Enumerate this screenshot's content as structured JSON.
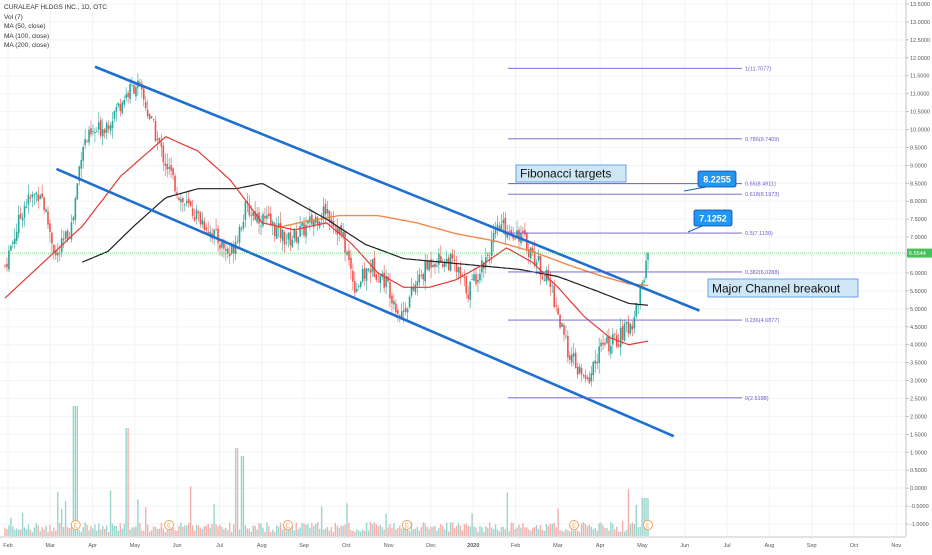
{
  "legend": {
    "symbol": "CURALEAF HLDGS INC., 1D, OTC",
    "vol": "Vol (7)",
    "ma50": "MA (50, close)",
    "ma100": "MA (100, close)",
    "ma200": "MA (200, close)"
  },
  "colors": {
    "up": "#26a69a",
    "down": "#ef5350",
    "ma50": "#e53935",
    "ma100": "#f08a4b",
    "ma200": "#1f1f1f",
    "channel": "#1e6fd0",
    "fib": "#6a5acd",
    "last_price": "#43c35a",
    "callout": "#2196f3"
  },
  "chart_data": {
    "type": "candlestick",
    "title": "CURALEAF HLDGS INC., 1D, OTC",
    "x_ticks": [
      "Feb",
      "Mar",
      "Apr",
      "May",
      "Jun",
      "Jul",
      "Aug",
      "Sep",
      "Oct",
      "Nov",
      "Dec",
      "2020",
      "Feb",
      "Mar",
      "Apr",
      "May",
      "Jun",
      "Jul",
      "Aug",
      "Sep",
      "Oct",
      "Nov"
    ],
    "price_axis": {
      "ticks": [
        "13.5000",
        "13.0000",
        "12.5000",
        "12.0000",
        "11.5000",
        "11.0000",
        "10.5000",
        "10.0000",
        "9.5000",
        "9.0000",
        "8.5000",
        "8.0000",
        "7.5000",
        "7.0000",
        "6.5000",
        "6.0000",
        "5.5000",
        "5.0000",
        "4.5000",
        "4.0000",
        "3.5000",
        "3.0000",
        "2.5000",
        "2.0000",
        "1.5000",
        "1.0000",
        "0.5000",
        "0.0000",
        "-0.5000",
        "-1.0000"
      ],
      "ylim": [
        -1.0,
        13.5
      ]
    },
    "last_price": "6.5544",
    "fib_levels": [
      {
        "label": "1(11.7077)",
        "value": 11.7077
      },
      {
        "label": "0.786(9.7409)",
        "value": 9.7409
      },
      {
        "label": "0.65(8.4911)",
        "value": 8.4911
      },
      {
        "label": "0.618(8.1973)",
        "value": 8.1973
      },
      {
        "label": "0.5(7.1130)",
        "value": 7.113
      },
      {
        "label": "0.382(6.0288)",
        "value": 6.0288
      },
      {
        "label": "0.236(4.6877)",
        "value": 4.6877
      },
      {
        "label": "0(2.5188)",
        "value": 2.5188
      }
    ],
    "annotations": {
      "fib_title": "Fibonacci  targets",
      "breakout": "Major Channel breakout",
      "target1": "8.2255",
      "target2": "7.1252"
    },
    "price_path": [
      {
        "x": 0.0,
        "p": 6.2
      },
      {
        "x": 0.03,
        "p": 7.9
      },
      {
        "x": 0.055,
        "p": 8.3
      },
      {
        "x": 0.08,
        "p": 6.4
      },
      {
        "x": 0.105,
        "p": 7.4
      },
      {
        "x": 0.12,
        "p": 9.6
      },
      {
        "x": 0.16,
        "p": 10.2
      },
      {
        "x": 0.185,
        "p": 10.9
      },
      {
        "x": 0.205,
        "p": 11.3
      },
      {
        "x": 0.22,
        "p": 10.6
      },
      {
        "x": 0.245,
        "p": 9.3
      },
      {
        "x": 0.275,
        "p": 8.0
      },
      {
        "x": 0.31,
        "p": 7.4
      },
      {
        "x": 0.35,
        "p": 6.5
      },
      {
        "x": 0.375,
        "p": 7.8
      },
      {
        "x": 0.41,
        "p": 7.4
      },
      {
        "x": 0.44,
        "p": 6.9
      },
      {
        "x": 0.47,
        "p": 7.3
      },
      {
        "x": 0.5,
        "p": 7.8
      },
      {
        "x": 0.525,
        "p": 7.0
      },
      {
        "x": 0.545,
        "p": 5.6
      },
      {
        "x": 0.57,
        "p": 6.2
      },
      {
        "x": 0.595,
        "p": 5.7
      },
      {
        "x": 0.615,
        "p": 4.8
      },
      {
        "x": 0.64,
        "p": 5.7
      },
      {
        "x": 0.665,
        "p": 6.4
      },
      {
        "x": 0.695,
        "p": 6.3
      },
      {
        "x": 0.72,
        "p": 5.5
      },
      {
        "x": 0.75,
        "p": 6.5
      },
      {
        "x": 0.77,
        "p": 7.3
      },
      {
        "x": 0.8,
        "p": 7.1
      },
      {
        "x": 0.825,
        "p": 6.4
      },
      {
        "x": 0.85,
        "p": 5.6
      },
      {
        "x": 0.87,
        "p": 4.1
      },
      {
        "x": 0.89,
        "p": 3.3
      },
      {
        "x": 0.905,
        "p": 2.9
      },
      {
        "x": 0.925,
        "p": 3.9
      },
      {
        "x": 0.95,
        "p": 4.1
      },
      {
        "x": 0.975,
        "p": 4.6
      },
      {
        "x": 0.99,
        "p": 5.6
      },
      {
        "x": 1.0,
        "p": 6.55
      }
    ],
    "ma50_path": [
      {
        "x": 0.0,
        "p": 5.3
      },
      {
        "x": 0.06,
        "p": 6.3
      },
      {
        "x": 0.12,
        "p": 7.3
      },
      {
        "x": 0.18,
        "p": 8.7
      },
      {
        "x": 0.25,
        "p": 9.8
      },
      {
        "x": 0.3,
        "p": 9.4
      },
      {
        "x": 0.35,
        "p": 8.6
      },
      {
        "x": 0.4,
        "p": 7.4
      },
      {
        "x": 0.45,
        "p": 7.2
      },
      {
        "x": 0.5,
        "p": 7.4
      },
      {
        "x": 0.54,
        "p": 6.8
      },
      {
        "x": 0.58,
        "p": 6.0
      },
      {
        "x": 0.62,
        "p": 5.6
      },
      {
        "x": 0.66,
        "p": 5.6
      },
      {
        "x": 0.7,
        "p": 5.8
      },
      {
        "x": 0.74,
        "p": 6.2
      },
      {
        "x": 0.78,
        "p": 6.7
      },
      {
        "x": 0.82,
        "p": 6.3
      },
      {
        "x": 0.86,
        "p": 5.6
      },
      {
        "x": 0.9,
        "p": 4.8
      },
      {
        "x": 0.94,
        "p": 4.2
      },
      {
        "x": 0.97,
        "p": 4.0
      },
      {
        "x": 1.0,
        "p": 4.1
      }
    ],
    "ma100_path": [
      {
        "x": 0.42,
        "p": 7.25
      },
      {
        "x": 0.47,
        "p": 7.45
      },
      {
        "x": 0.52,
        "p": 7.6
      },
      {
        "x": 0.58,
        "p": 7.6
      },
      {
        "x": 0.64,
        "p": 7.4
      },
      {
        "x": 0.7,
        "p": 7.1
      },
      {
        "x": 0.76,
        "p": 6.9
      },
      {
        "x": 0.82,
        "p": 6.6
      },
      {
        "x": 0.88,
        "p": 6.2
      },
      {
        "x": 0.93,
        "p": 5.9
      },
      {
        "x": 0.97,
        "p": 5.7
      },
      {
        "x": 1.0,
        "p": 5.65
      }
    ],
    "ma200_path": [
      {
        "x": 0.12,
        "p": 6.3
      },
      {
        "x": 0.16,
        "p": 6.6
      },
      {
        "x": 0.2,
        "p": 7.3
      },
      {
        "x": 0.25,
        "p": 8.1
      },
      {
        "x": 0.3,
        "p": 8.35
      },
      {
        "x": 0.36,
        "p": 8.35
      },
      {
        "x": 0.4,
        "p": 8.5
      },
      {
        "x": 0.44,
        "p": 8.1
      },
      {
        "x": 0.5,
        "p": 7.5
      },
      {
        "x": 0.56,
        "p": 6.8
      },
      {
        "x": 0.62,
        "p": 6.4
      },
      {
        "x": 0.68,
        "p": 6.3
      },
      {
        "x": 0.74,
        "p": 6.2
      },
      {
        "x": 0.8,
        "p": 6.1
      },
      {
        "x": 0.86,
        "p": 5.9
      },
      {
        "x": 0.92,
        "p": 5.5
      },
      {
        "x": 0.97,
        "p": 5.15
      },
      {
        "x": 1.0,
        "p": 5.1
      }
    ],
    "channel_lines": [
      {
        "x1": 0.14,
        "p1": 11.75,
        "x2": 1.08,
        "p2": 4.95
      },
      {
        "x1": 0.08,
        "p1": 8.9,
        "x2": 1.04,
        "p2": 1.45
      }
    ]
  }
}
